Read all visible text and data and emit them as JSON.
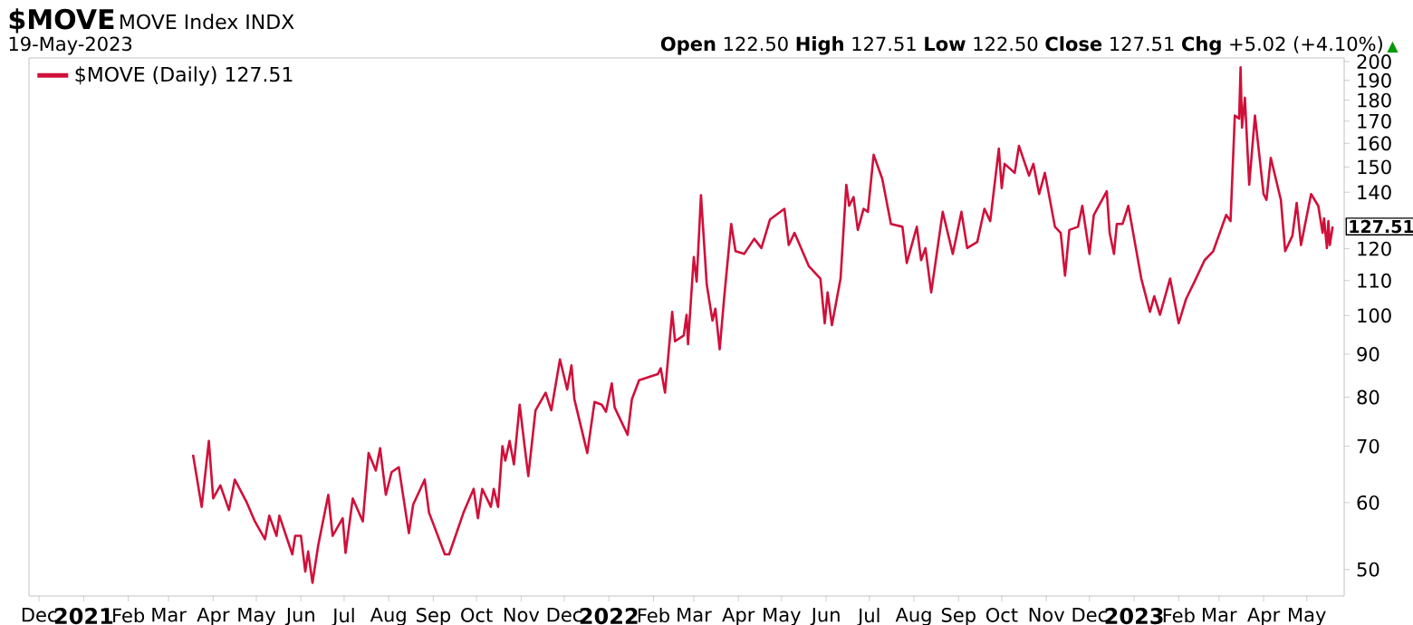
{
  "chart_data": {
    "type": "line",
    "title": "$MOVE",
    "subtitle": "MOVE Index INDX",
    "annotations": [
      "19-May-2023",
      "**Open** 122.50 **High** 127.51 **Low** 122.50 **Close** 127.51 **Chg** +5.02 (+4.10%)",
      "▲",
      {
        "text": "127.51",
        "x": "2023-05-19",
        "y": 127.51
      }
    ],
    "x": [
      "2021-03-18",
      "2021-03-24",
      "2021-03-29",
      "2021-04-01",
      "2021-04-06",
      "2021-04-12",
      "2021-04-16",
      "2021-04-24",
      "2021-04-30",
      "2021-05-07",
      "2021-05-10",
      "2021-05-15",
      "2021-05-17",
      "2021-05-26",
      "2021-05-28",
      "2021-06-01",
      "2021-06-04",
      "2021-06-06",
      "2021-06-09",
      "2021-06-13",
      "2021-06-20",
      "2021-06-23",
      "2021-06-30",
      "2021-07-02",
      "2021-07-07",
      "2021-07-14",
      "2021-07-18",
      "2021-07-23",
      "2021-07-26",
      "2021-07-30",
      "2021-08-03",
      "2021-08-08",
      "2021-08-15",
      "2021-08-18",
      "2021-08-26",
      "2021-08-29",
      "2021-09-09",
      "2021-09-12",
      "2021-09-22",
      "2021-09-29",
      "2021-10-02",
      "2021-10-05",
      "2021-10-11",
      "2021-10-13",
      "2021-10-16",
      "2021-10-19",
      "2021-10-21",
      "2021-10-24",
      "2021-10-27",
      "2021-10-31",
      "2021-11-03",
      "2021-11-06",
      "2021-11-11",
      "2021-11-18",
      "2021-11-22",
      "2021-11-28",
      "2021-12-03",
      "2021-12-06",
      "2021-12-08",
      "2021-12-17",
      "2021-12-22",
      "2021-12-27",
      "2021-12-30",
      "2022-01-03",
      "2022-01-05",
      "2022-01-14",
      "2022-01-17",
      "2022-01-22",
      "2022-02-04",
      "2022-02-06",
      "2022-02-09",
      "2022-02-14",
      "2022-02-16",
      "2022-02-22",
      "2022-02-24",
      "2022-02-25",
      "2022-03-01",
      "2022-03-03",
      "2022-03-06",
      "2022-03-10",
      "2022-03-14",
      "2022-03-16",
      "2022-03-19",
      "2022-03-22",
      "2022-03-27",
      "2022-03-30",
      "2022-04-05",
      "2022-04-12",
      "2022-04-17",
      "2022-04-23",
      "2022-05-03",
      "2022-05-06",
      "2022-05-10",
      "2022-05-20",
      "2022-05-28",
      "2022-05-31",
      "2022-06-02",
      "2022-06-05",
      "2022-06-11",
      "2022-06-15",
      "2022-06-17",
      "2022-06-20",
      "2022-06-23",
      "2022-06-27",
      "2022-06-30",
      "2022-07-04",
      "2022-07-10",
      "2022-07-16",
      "2022-07-24",
      "2022-07-27",
      "2022-08-03",
      "2022-08-06",
      "2022-08-09",
      "2022-08-13",
      "2022-08-21",
      "2022-08-28",
      "2022-09-03",
      "2022-09-07",
      "2022-09-14",
      "2022-09-19",
      "2022-09-23",
      "2022-09-29",
      "2022-10-01",
      "2022-10-03",
      "2022-10-10",
      "2022-10-13",
      "2022-10-20",
      "2022-10-23",
      "2022-10-27",
      "2022-10-31",
      "2022-11-07",
      "2022-11-11",
      "2022-11-14",
      "2022-11-17",
      "2022-11-23",
      "2022-11-26",
      "2022-12-01",
      "2022-12-04",
      "2022-12-13",
      "2022-12-15",
      "2022-12-18",
      "2022-12-20",
      "2022-12-24",
      "2022-12-28",
      "2023-01-06",
      "2023-01-12",
      "2023-01-15",
      "2023-01-19",
      "2023-01-26",
      "2023-02-01",
      "2023-02-06",
      "2023-02-12",
      "2023-02-19",
      "2023-02-25",
      "2023-03-06",
      "2023-03-09",
      "2023-03-12",
      "2023-03-15",
      "2023-03-16",
      "2023-03-17",
      "2023-03-19",
      "2023-03-22",
      "2023-03-26",
      "2023-04-01",
      "2023-04-03",
      "2023-04-06",
      "2023-04-13",
      "2023-04-16",
      "2023-04-21",
      "2023-04-24",
      "2023-04-27",
      "2023-05-04",
      "2023-05-09",
      "2023-05-12",
      "2023-05-13",
      "2023-05-15",
      "2023-05-16",
      "2023-05-17",
      "2023-05-19"
    ],
    "series": [
      {
        "name": "$MOVE (Daily) 127.51",
        "color": "#d0103a",
        "values": [
          68.4,
          59.3,
          71.0,
          60.7,
          62.9,
          58.8,
          63.9,
          60.2,
          57.0,
          54.3,
          57.9,
          54.8,
          57.9,
          52.1,
          54.8,
          54.8,
          49.7,
          52.5,
          48.2,
          53.4,
          61.3,
          54.8,
          57.5,
          52.3,
          60.7,
          57.0,
          68.7,
          65.5,
          69.6,
          61.3,
          65.2,
          66.1,
          55.2,
          59.7,
          63.9,
          58.4,
          52.1,
          52.1,
          58.4,
          62.3,
          57.5,
          62.3,
          59.3,
          62.3,
          59.3,
          70.0,
          67.3,
          71.0,
          66.6,
          78.4,
          71.0,
          64.5,
          77.2,
          81.0,
          77.2,
          88.7,
          81.7,
          87.3,
          79.6,
          68.7,
          79.0,
          78.4,
          76.9,
          83.1,
          77.8,
          72.2,
          79.6,
          83.8,
          85.2,
          86.6,
          81.0,
          101.0,
          93.2,
          94.7,
          100.2,
          92.5,
          117.3,
          109.7,
          138.9,
          108.9,
          98.6,
          101.9,
          91.2,
          104.5,
          128.4,
          119.2,
          118.3,
          123.3,
          120.2,
          130.0,
          133.8,
          121.2,
          125.3,
          114.4,
          110.6,
          97.9,
          106.5,
          97.4,
          110.6,
          142.9,
          134.9,
          138.2,
          126.3,
          133.8,
          132.7,
          155.1,
          145.2,
          128.4,
          127.4,
          115.4,
          127.4,
          116.3,
          120.2,
          106.5,
          132.7,
          118.3,
          132.7,
          120.2,
          122.2,
          133.8,
          129.4,
          157.7,
          141.6,
          151.3,
          147.6,
          158.9,
          146.5,
          151.3,
          139.3,
          147.6,
          127.4,
          125.3,
          111.5,
          126.3,
          127.4,
          134.9,
          118.3,
          131.6,
          140.4,
          125.3,
          118.3,
          128.4,
          128.4,
          134.9,
          110.6,
          101.0,
          105.4,
          100.2,
          110.6,
          97.9,
          104.5,
          109.7,
          116.3,
          119.2,
          131.6,
          129.4,
          172.6,
          171.2,
          196.9,
          167.0,
          181.2,
          142.9,
          172.6,
          139.3,
          137.1,
          153.8,
          137.1,
          119.2,
          124.3,
          136.0,
          121.2,
          139.3,
          134.9,
          125.3,
          130.4,
          120.2,
          129.4,
          121.2,
          127.51
        ]
      }
    ],
    "log": "y",
    "legend": "top left",
    "marker": "none",
    "line_style": "solid",
    "xlim": [
      "2020-11-24",
      "2023-05-27"
    ],
    "ylim": [
      46.5,
      202
    ],
    "xticks": [
      {
        "value": "2020-12-01",
        "label": "Dec"
      },
      {
        "value": "2021-01-01",
        "label": "2021"
      },
      {
        "value": "2021-02-01",
        "label": "Feb"
      },
      {
        "value": "2021-03-01",
        "label": "Mar"
      },
      {
        "value": "2021-04-01",
        "label": "Apr"
      },
      {
        "value": "2021-05-01",
        "label": "May"
      },
      {
        "value": "2021-06-01",
        "label": "Jun"
      },
      {
        "value": "2021-07-01",
        "label": "Jul"
      },
      {
        "value": "2021-08-01",
        "label": "Aug"
      },
      {
        "value": "2021-09-01",
        "label": "Sep"
      },
      {
        "value": "2021-10-01",
        "label": "Oct"
      },
      {
        "value": "2021-11-01",
        "label": "Nov"
      },
      {
        "value": "2021-12-01",
        "label": "Dec"
      },
      {
        "value": "2022-01-01",
        "label": "2022"
      },
      {
        "value": "2022-02-01",
        "label": "Feb"
      },
      {
        "value": "2022-03-01",
        "label": "Mar"
      },
      {
        "value": "2022-04-01",
        "label": "Apr"
      },
      {
        "value": "2022-05-01",
        "label": "May"
      },
      {
        "value": "2022-06-01",
        "label": "Jun"
      },
      {
        "value": "2022-07-01",
        "label": "Jul"
      },
      {
        "value": "2022-08-01",
        "label": "Aug"
      },
      {
        "value": "2022-09-01",
        "label": "Sep"
      },
      {
        "value": "2022-10-01",
        "label": "Oct"
      },
      {
        "value": "2022-11-01",
        "label": "Nov"
      },
      {
        "value": "2022-12-01",
        "label": "Dec"
      },
      {
        "value": "2023-01-01",
        "label": "2023"
      },
      {
        "value": "2023-02-01",
        "label": "Feb"
      },
      {
        "value": "2023-03-01",
        "label": "Mar"
      },
      {
        "value": "2023-04-01",
        "label": "Apr"
      },
      {
        "value": "2023-05-01",
        "label": "May"
      }
    ],
    "yticks": [
      50,
      60,
      70,
      80,
      90,
      100,
      110,
      120,
      {
        "value": 130,
        "label": null
      },
      140,
      150,
      160,
      170,
      180,
      190,
      200
    ]
  }
}
